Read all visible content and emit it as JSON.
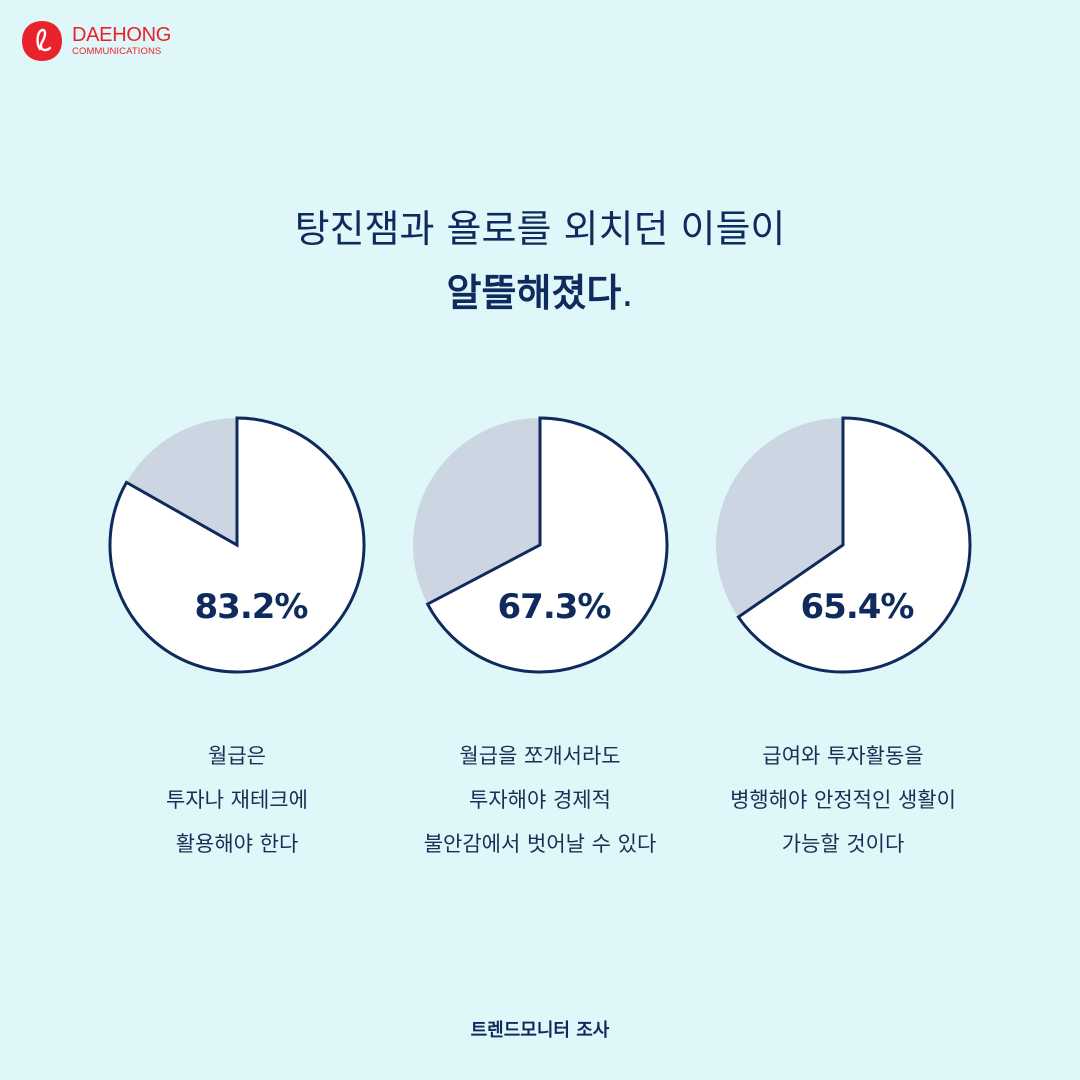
{
  "brand": {
    "name": "DAEHONG",
    "sub": "COMMUNICATIONS",
    "color": "#e8232b"
  },
  "title": {
    "line1": "탕진잼과 욜로를 외치던 이들이",
    "line2_bold": "알뜰해졌다",
    "line2_tail": "."
  },
  "colors": {
    "background": "#dff7f9",
    "slice_main": "#ffffff",
    "slice_rest": "#ccd5e2",
    "stroke": "#0f2a5c"
  },
  "chart_data": [
    {
      "type": "pie",
      "values": [
        83.2,
        16.8
      ],
      "label": "83.2%",
      "caption": [
        "월급은",
        "투자나 재테크에",
        "활용해야 한다"
      ]
    },
    {
      "type": "pie",
      "values": [
        67.3,
        32.7
      ],
      "label": "67.3%",
      "caption": [
        "월급을 쪼개서라도",
        "투자해야 경제적",
        "불안감에서 벗어날 수 있다"
      ]
    },
    {
      "type": "pie",
      "values": [
        65.4,
        34.6
      ],
      "label": "65.4%",
      "caption": [
        "급여와 투자활동을",
        "병행해야 안정적인 생활이",
        "가능할 것이다"
      ]
    }
  ],
  "source": "트렌드모니터 조사"
}
